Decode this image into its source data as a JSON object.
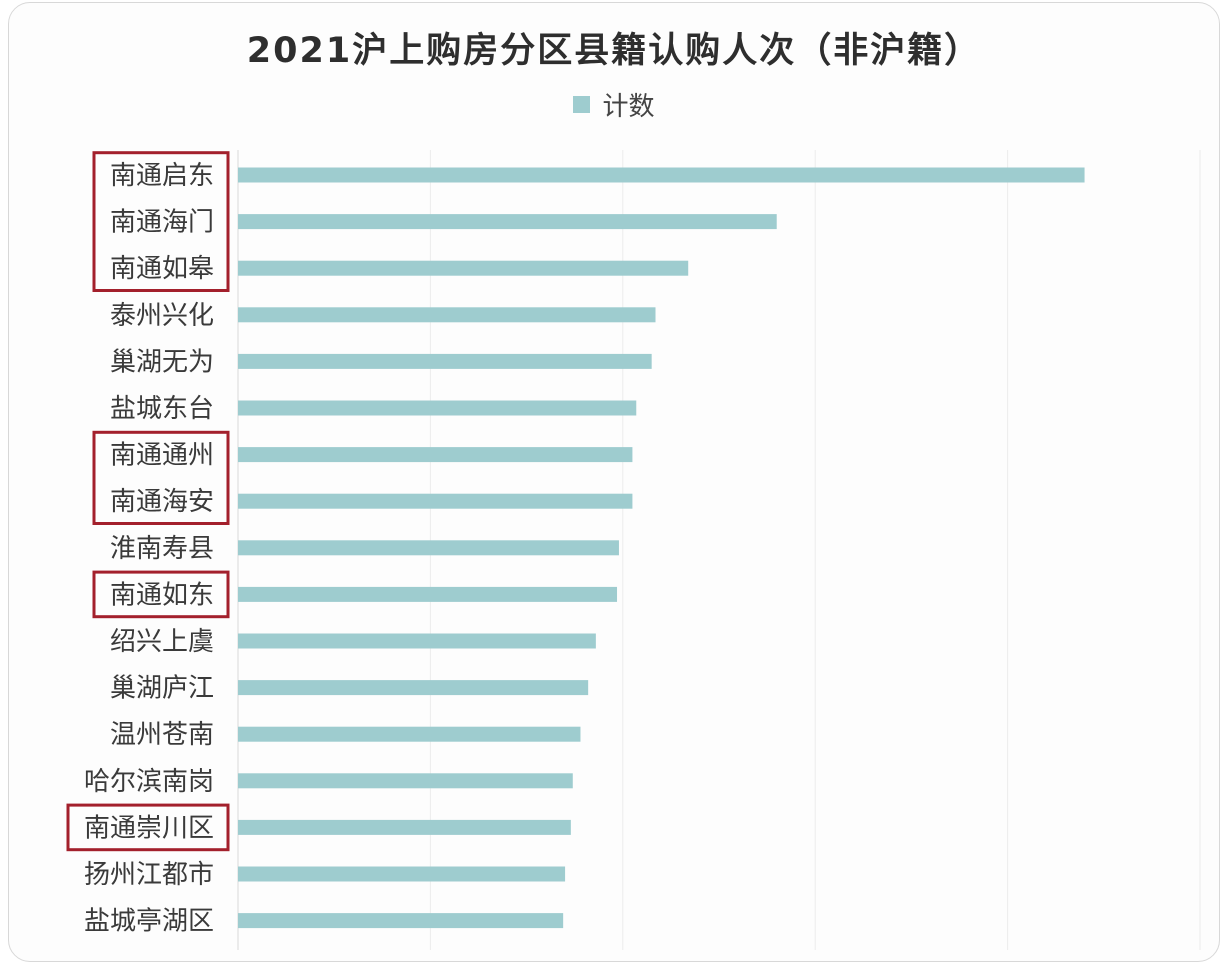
{
  "chart_data": {
    "type": "bar",
    "orientation": "horizontal",
    "title": "2021沪上购房分区县籍认购人次（非沪籍）",
    "legend": {
      "position": "top-center",
      "entries": [
        "计数"
      ]
    },
    "series": [
      {
        "name": "计数",
        "color": "#9ecccf",
        "values": [
          440,
          280,
          234,
          217,
          215,
          207,
          205,
          205,
          198,
          197,
          186,
          182,
          178,
          174,
          173,
          170,
          169
        ]
      }
    ],
    "categories": [
      "南通启东",
      "南通海门",
      "南通如皋",
      "泰州兴化",
      "巢湖无为",
      "盐城东台",
      "南通通州",
      "南通海安",
      "淮南寿县",
      "南通如东",
      "绍兴上虞",
      "巢湖庐江",
      "温州苍南",
      "哈尔滨南岗",
      "南通崇川区",
      "扬州江都市",
      "盐城亭湖区"
    ],
    "highlighted_groups": [
      [
        "南通启东",
        "南通海门",
        "南通如皋"
      ],
      [
        "南通通州",
        "南通海安"
      ],
      [
        "南通如东"
      ],
      [
        "南通崇川区"
      ]
    ],
    "highlight_color": "#a3202c",
    "xlim": [
      0,
      500
    ],
    "grid": {
      "vertical": true,
      "horizontal": false
    },
    "xlabel": "",
    "ylabel": ""
  }
}
